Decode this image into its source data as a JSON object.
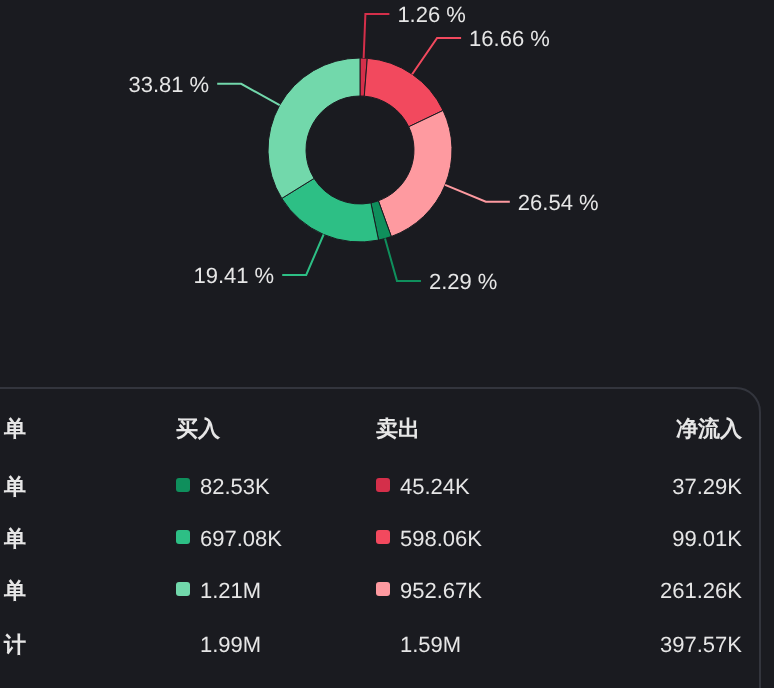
{
  "chart_data": [
    {
      "type": "donut",
      "categories": [
        null,
        null,
        null,
        null,
        null,
        null
      ],
      "values": [
        1.26,
        16.66,
        26.54,
        2.29,
        19.41,
        33.81
      ],
      "value_labels": [
        "1.26 %",
        "16.66 %",
        "26.54 %",
        "2.29 %",
        "19.41 %",
        "33.81 %"
      ],
      "colors": [
        "#d42f4a",
        "#f2495e",
        "#fe9aa0",
        "#0f8f5c",
        "#2dbf85",
        "#72d8ab"
      ]
    },
    {
      "type": "other",
      "annotations": [
        "单",
        "买入",
        "卖出",
        "净流入",
        "单",
        "82.53K",
        "45.24K",
        "37.29K",
        "单",
        "697.08K",
        "598.06K",
        "99.01K",
        "单",
        "1.21M",
        "952.67K",
        "261.26K",
        "计",
        "1.99M",
        "1.59M",
        "397.57K"
      ],
      "colors": [
        "#0f8f5c",
        "#d42f4a",
        "#2dbf85",
        "#f2495e",
        "#72d8ab",
        "#fe9aa0"
      ]
    }
  ]
}
